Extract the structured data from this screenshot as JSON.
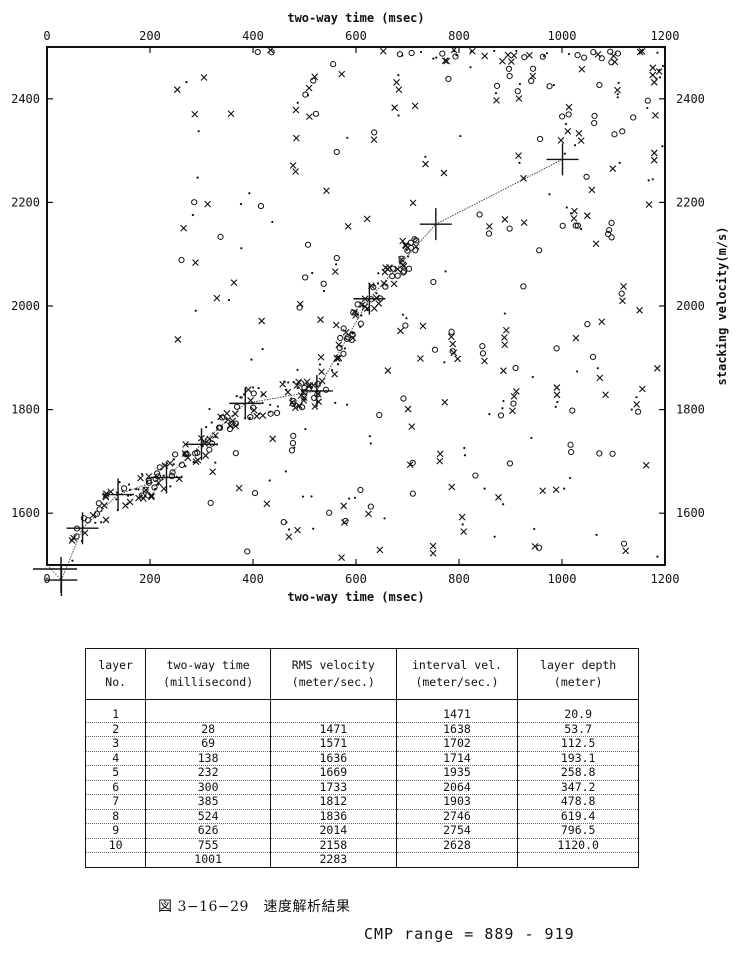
{
  "chart_data": {
    "type": "scatter",
    "title": "",
    "xlabel": "two-way time (msec)",
    "ylabel": "stacking velocity(m/s)",
    "xlim": [
      0,
      1200
    ],
    "ylim": [
      1500,
      2500
    ],
    "xticks": [
      0,
      200,
      400,
      600,
      800,
      1000,
      1200
    ],
    "yticks": [
      1600,
      1800,
      2000,
      2200,
      2400
    ],
    "picked_velocity_function": {
      "x": [
        28,
        69,
        138,
        232,
        300,
        385,
        524,
        626,
        755,
        1001
      ],
      "y": [
        1471,
        1571,
        1636,
        1669,
        1733,
        1812,
        1836,
        2014,
        2158,
        2283
      ]
    },
    "scatter_markers": "circle, cross and dot markers of semblance peaks"
  },
  "table": {
    "headers": [
      [
        "layer",
        "No."
      ],
      [
        "two-way time",
        "(millisecond)"
      ],
      [
        "RMS velocity",
        "(meter/sec.)"
      ],
      [
        "interval vel.",
        "(meter/sec.)"
      ],
      [
        "layer depth",
        "(meter)"
      ]
    ],
    "layers": [
      "1",
      "2",
      "3",
      "4",
      "5",
      "6",
      "7",
      "8",
      "9",
      "10"
    ],
    "times": [
      "28",
      "69",
      "138",
      "232",
      "300",
      "385",
      "524",
      "626",
      "755",
      "1001"
    ],
    "rms": [
      "1471",
      "1571",
      "1636",
      "1669",
      "1733",
      "1812",
      "1836",
      "2014",
      "2158",
      "2283"
    ],
    "interval": [
      "1471",
      "1638",
      "1702",
      "1714",
      "1935",
      "2064",
      "1903",
      "2746",
      "2754",
      "2628"
    ],
    "depth": [
      "20.9",
      "53.7",
      "112.5",
      "193.1",
      "258.8",
      "347.2",
      "478.8",
      "619.4",
      "796.5",
      "1120.0"
    ]
  },
  "caption": "図 3−16−29　速度解析結果",
  "cmp_range": "CMP range = 889 - 919"
}
